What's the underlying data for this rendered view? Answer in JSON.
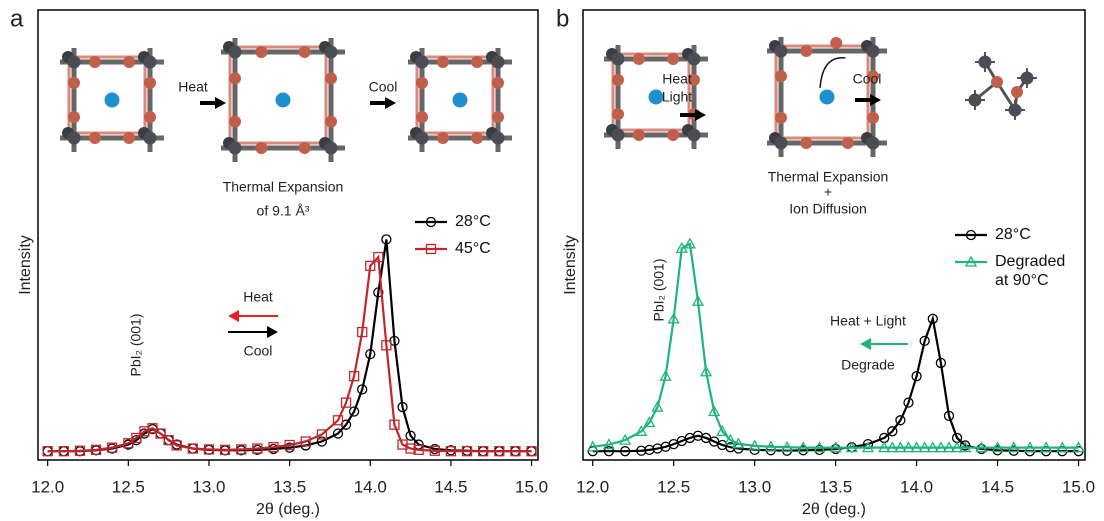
{
  "chart_data": [
    {
      "type": "line",
      "panel_label": "a",
      "xlabel": "2θ (deg.)",
      "ylabel": "Intensity",
      "xlim": [
        11.94,
        15.04
      ],
      "ylim": [
        0,
        102
      ],
      "xticks": [
        {
          "value": 12,
          "label": "12.0"
        },
        12.5,
        {
          "value": 13,
          "label": "13.0"
        },
        13.5,
        {
          "value": 14,
          "label": "14.0"
        },
        14.5,
        {
          "value": 15,
          "label": "15.0"
        }
      ],
      "x": [
        12.0,
        12.1,
        12.2,
        12.3,
        12.4,
        12.5,
        12.55,
        12.6,
        12.65,
        12.7,
        12.75,
        12.8,
        12.9,
        13.0,
        13.1,
        13.2,
        13.3,
        13.4,
        13.5,
        13.6,
        13.7,
        13.8,
        13.85,
        13.9,
        13.95,
        14.0,
        14.05,
        14.1,
        14.15,
        14.2,
        14.25,
        14.3,
        14.4,
        14.5,
        14.6,
        14.7,
        14.8,
        14.9,
        15.0
      ],
      "series": [
        {
          "name": "28°C",
          "color": "#000000",
          "marker": "circle",
          "values": [
            2,
            2,
            2,
            2.2,
            2.6,
            3.5,
            4.5,
            6,
            7,
            6,
            4.5,
            3.5,
            2.6,
            2.3,
            2.2,
            2.2,
            2.3,
            2.5,
            2.8,
            3.3,
            4.2,
            6,
            8,
            11,
            16,
            24,
            38,
            50,
            27,
            12,
            5.5,
            3.5,
            2.5,
            2.2,
            2.1,
            2,
            2,
            2,
            2
          ]
        },
        {
          "name": "45°C",
          "color": "#c0272d",
          "marker": "square",
          "values": [
            2,
            2,
            2.1,
            2.3,
            2.8,
            3.8,
            5,
            6.5,
            7.2,
            6,
            4.5,
            3.3,
            2.6,
            2.4,
            2.3,
            2.4,
            2.6,
            2.9,
            3.4,
            4.2,
            5.8,
            9,
            13,
            19,
            29,
            44,
            46,
            26,
            8,
            3.5,
            2.6,
            2.3,
            2.1,
            2,
            2,
            2,
            2,
            2,
            2
          ]
        }
      ],
      "annotations": [
        "Heat",
        "Cool",
        "Thermal Expansion",
        "of 9.1 Å³",
        "Heat",
        "Cool",
        "PbI₂ (001)"
      ]
    },
    {
      "type": "line",
      "panel_label": "b",
      "xlabel": "2θ (deg.)",
      "ylabel": "Intensity",
      "xlim": [
        11.94,
        15.04
      ],
      "ylim": [
        0,
        102
      ],
      "xticks": [
        {
          "value": 12,
          "label": "12.0"
        },
        12.5,
        {
          "value": 13,
          "label": "13.0"
        },
        13.5,
        {
          "value": 14,
          "label": "14.0"
        },
        14.5,
        {
          "value": 15,
          "label": "15.0"
        }
      ],
      "x": [
        12.0,
        12.1,
        12.2,
        12.3,
        12.35,
        12.4,
        12.45,
        12.5,
        12.55,
        12.6,
        12.65,
        12.7,
        12.75,
        12.8,
        12.85,
        12.9,
        13.0,
        13.1,
        13.2,
        13.3,
        13.4,
        13.5,
        13.6,
        13.7,
        13.8,
        13.85,
        13.9,
        13.95,
        14.0,
        14.05,
        14.1,
        14.15,
        14.2,
        14.25,
        14.3,
        14.4,
        14.5,
        14.6,
        14.7,
        14.8,
        14.9,
        15.0
      ],
      "series": [
        {
          "name": "28°C",
          "color": "#000000",
          "marker": "circle",
          "values": [
            2,
            2,
            2,
            2.1,
            2.3,
            2.6,
            3,
            3.6,
            4.3,
            5,
            5.5,
            5,
            4.2,
            3.4,
            2.9,
            2.6,
            2.3,
            2.2,
            2.1,
            2.2,
            2.3,
            2.5,
            2.9,
            3.6,
            5,
            6.5,
            9,
            13,
            19,
            27,
            32,
            22,
            10,
            5,
            3.3,
            2.5,
            2.2,
            2.1,
            2,
            2,
            2,
            2
          ]
        },
        {
          "name": "Degraded at 90°C",
          "color": "#1fb57a",
          "marker": "triangle",
          "values": [
            3,
            3.5,
            4.5,
            6.5,
            8.5,
            12,
            19,
            32,
            48,
            49,
            36,
            20,
            11,
            6.5,
            4.5,
            3.7,
            3.2,
            3,
            2.9,
            2.8,
            2.8,
            2.8,
            2.8,
            2.8,
            2.8,
            2.8,
            2.8,
            2.8,
            2.8,
            2.8,
            2.8,
            2.8,
            2.8,
            2.8,
            2.8,
            2.8,
            2.8,
            2.8,
            2.8,
            2.8,
            2.8,
            2.8
          ]
        }
      ],
      "annotations": [
        "Heat",
        "Light",
        "Cool",
        "Thermal Expansion",
        "+",
        "Ion Diffusion",
        "Heat + Light",
        "Degrade",
        "PbI₂ (001)"
      ]
    }
  ]
}
